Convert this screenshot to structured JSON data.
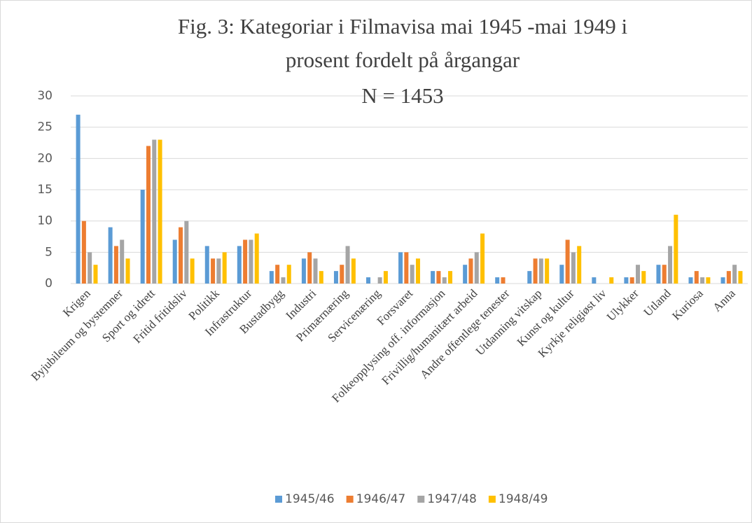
{
  "chart_data": {
    "type": "bar",
    "title": "Fig. 3: Kategoriar i Filmavisa mai 1945 -mai 1949 i prosent fordelt på årgangar",
    "subtitle": "N = 1453",
    "categories": [
      "Krigen",
      "Byjubileum og bystemner",
      "Sport og idrett",
      "Fritid fritidsliv",
      "Politikk",
      "Infrastruktur",
      "Bustadbygg",
      "Industri",
      "Primærnæring",
      "Servicenæring",
      "Forsvaret",
      "Folkeopplysing off. informasjon",
      "Frivillig/humanitært arbeid",
      "Andre offentlege tenester",
      "Utdanning vitskap",
      "Kunst og kultur",
      "Kyrkje religiøst liv",
      "Ulykker",
      "Utland",
      "Kuriosa",
      "Anna"
    ],
    "series": [
      {
        "name": "1945/46",
        "color": "#5b9bd5",
        "values": [
          27,
          9,
          15,
          7,
          6,
          6,
          2,
          4,
          2,
          1,
          5,
          2,
          3,
          1,
          2,
          3,
          1,
          1,
          3,
          1,
          1
        ]
      },
      {
        "name": "1946/47",
        "color": "#ed7d31",
        "values": [
          10,
          6,
          22,
          9,
          4,
          7,
          3,
          5,
          3,
          0,
          5,
          2,
          4,
          1,
          4,
          7,
          0,
          1,
          3,
          2,
          2
        ]
      },
      {
        "name": "1947/48",
        "color": "#a5a5a5",
        "values": [
          5,
          7,
          23,
          10,
          4,
          7,
          1,
          4,
          6,
          1,
          3,
          1,
          5,
          0,
          4,
          5,
          0,
          3,
          6,
          1,
          3
        ]
      },
      {
        "name": "1948/49",
        "color": "#ffc000",
        "values": [
          3,
          4,
          23,
          4,
          5,
          8,
          3,
          2,
          4,
          2,
          4,
          2,
          8,
          0,
          4,
          6,
          1,
          2,
          11,
          1,
          2
        ]
      }
    ],
    "ylim": [
      0,
      30
    ],
    "yticks": [
      0,
      5,
      10,
      15,
      20,
      25,
      30
    ],
    "grid": true,
    "legend": "bottom"
  }
}
